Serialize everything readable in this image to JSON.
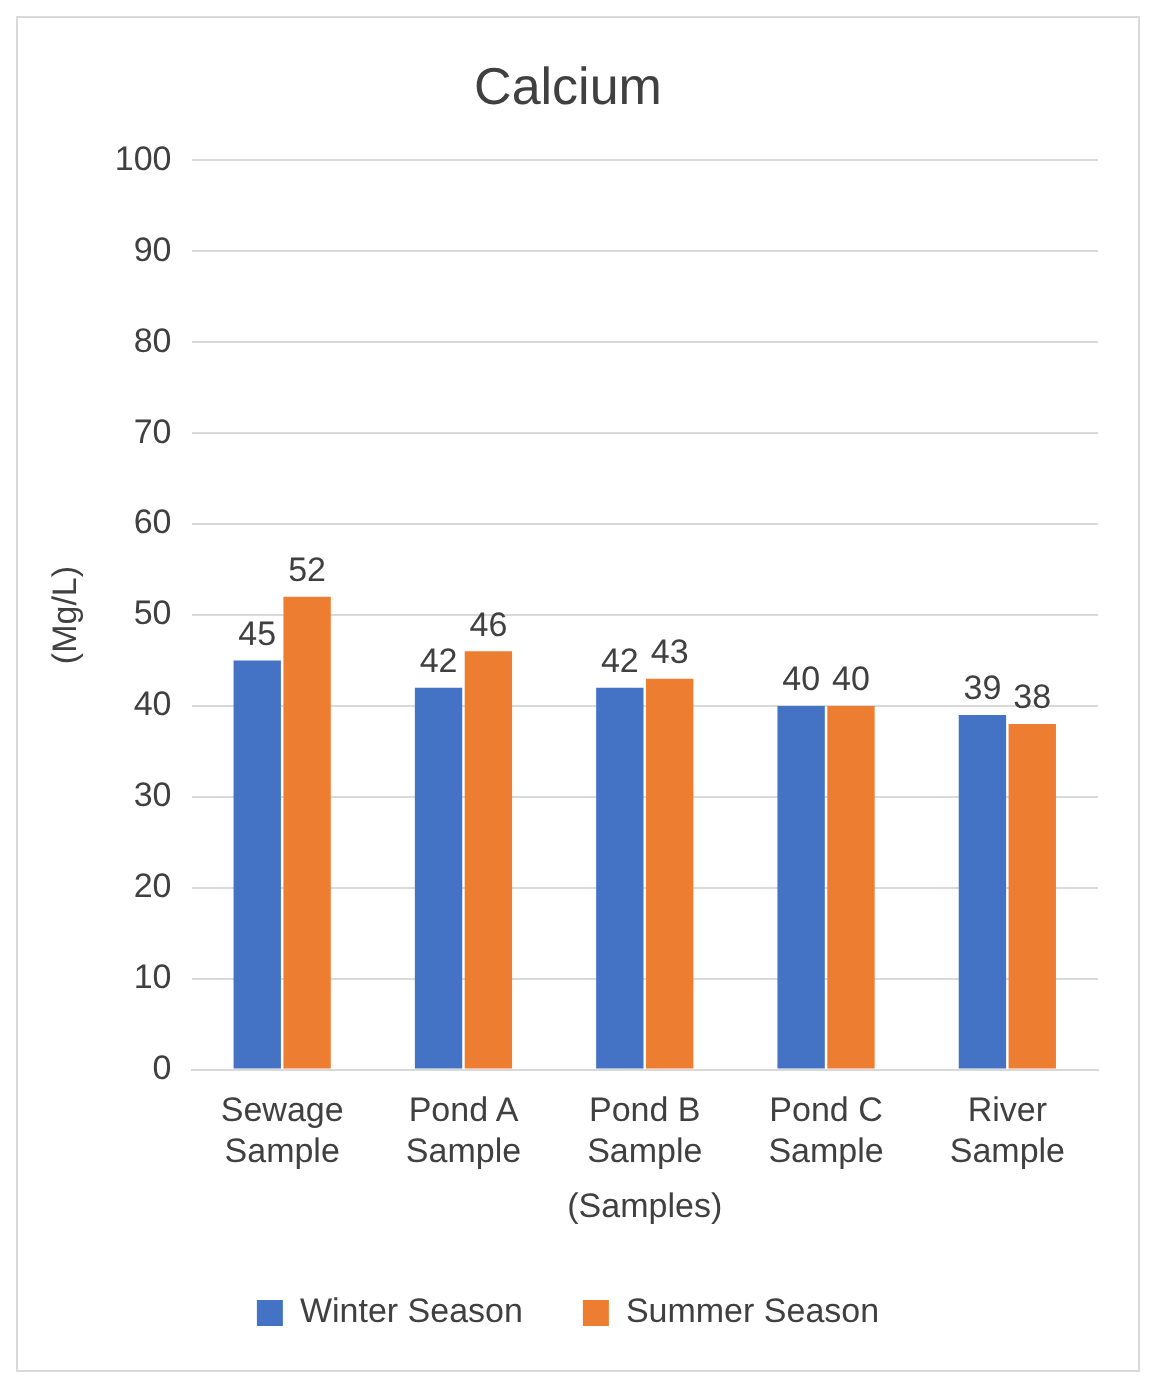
{
  "chart_data": {
    "type": "bar",
    "title": "Calcium",
    "xlabel": "(Samples)",
    "ylabel": "(Mg/L)",
    "categories": [
      "Sewage Sample",
      "Pond A Sample",
      "Pond B Sample",
      "Pond C Sample",
      "River Sample"
    ],
    "series": [
      {
        "name": "Winter Season",
        "color": "#4472c4",
        "values": [
          45,
          42,
          42,
          40,
          39
        ]
      },
      {
        "name": "Summer Season",
        "color": "#ed7d31",
        "values": [
          52,
          46,
          43,
          40,
          38
        ]
      }
    ],
    "ylim": [
      0,
      100
    ],
    "yticks": [
      0,
      10,
      20,
      30,
      40,
      50,
      60,
      70,
      80,
      90,
      100
    ],
    "grid": "y",
    "legend": "bottom",
    "data_labels": true
  }
}
